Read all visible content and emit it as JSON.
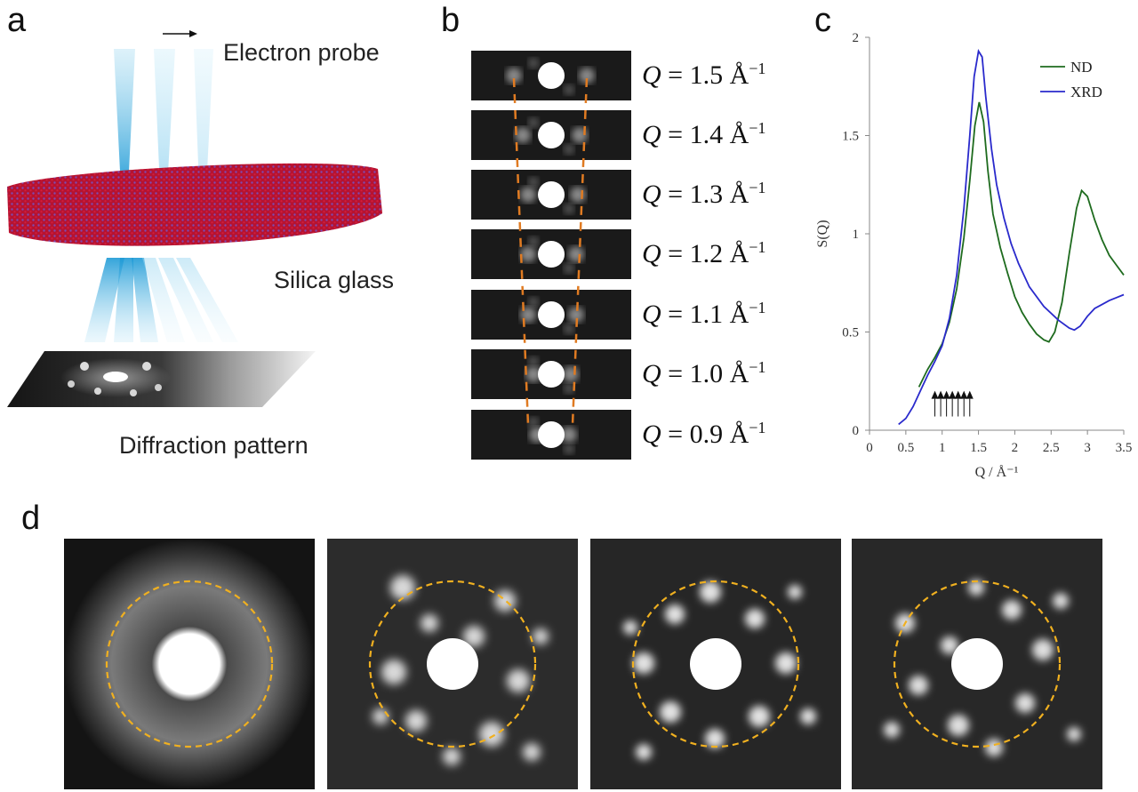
{
  "panels": {
    "a": {
      "letter": "a",
      "electron_probe": "Electron probe",
      "silica_glass": "Silica glass",
      "diffraction_pattern": "Diffraction pattern"
    },
    "b": {
      "letter": "b",
      "rows": [
        {
          "q": "1.5"
        },
        {
          "q": "1.4"
        },
        {
          "q": "1.3"
        },
        {
          "q": "1.2"
        },
        {
          "q": "1.1"
        },
        {
          "q": "1.0"
        },
        {
          "q": "0.9"
        }
      ],
      "q_symbol": "Q",
      "equals": " = ",
      "unit": " Å",
      "unit_exp": "−1"
    },
    "c": {
      "letter": "c"
    },
    "d": {
      "letter": "d",
      "tile_count": 4
    }
  },
  "chart_data": {
    "type": "line",
    "xlabel": "Q / Å⁻¹",
    "ylabel": "S(Q)",
    "xlim": [
      0,
      3.5
    ],
    "ylim": [
      0,
      2
    ],
    "x_ticks": [
      "0",
      "0.5",
      "1",
      "1.5",
      "2",
      "2.5",
      "3",
      "3.5"
    ],
    "y_ticks": [
      "0",
      "0.5",
      "1",
      "1.5",
      "2"
    ],
    "legend_position": "top-right",
    "series": [
      {
        "name": "ND",
        "color": "#1e6b1e",
        "points": [
          [
            0.68,
            0.22
          ],
          [
            0.8,
            0.31
          ],
          [
            0.9,
            0.37
          ],
          [
            1.0,
            0.44
          ],
          [
            1.1,
            0.55
          ],
          [
            1.2,
            0.72
          ],
          [
            1.3,
            0.98
          ],
          [
            1.38,
            1.27
          ],
          [
            1.45,
            1.55
          ],
          [
            1.51,
            1.67
          ],
          [
            1.57,
            1.57
          ],
          [
            1.63,
            1.32
          ],
          [
            1.7,
            1.1
          ],
          [
            1.8,
            0.93
          ],
          [
            1.9,
            0.8
          ],
          [
            2.0,
            0.68
          ],
          [
            2.1,
            0.6
          ],
          [
            2.2,
            0.54
          ],
          [
            2.3,
            0.49
          ],
          [
            2.4,
            0.46
          ],
          [
            2.47,
            0.45
          ],
          [
            2.55,
            0.5
          ],
          [
            2.65,
            0.65
          ],
          [
            2.75,
            0.9
          ],
          [
            2.85,
            1.13
          ],
          [
            2.92,
            1.22
          ],
          [
            3.0,
            1.19
          ],
          [
            3.1,
            1.07
          ],
          [
            3.2,
            0.97
          ],
          [
            3.3,
            0.89
          ],
          [
            3.4,
            0.84
          ],
          [
            3.5,
            0.79
          ]
        ]
      },
      {
        "name": "XRD",
        "color": "#2a2acc",
        "points": [
          [
            0.4,
            0.03
          ],
          [
            0.5,
            0.06
          ],
          [
            0.6,
            0.12
          ],
          [
            0.7,
            0.2
          ],
          [
            0.8,
            0.28
          ],
          [
            0.9,
            0.35
          ],
          [
            1.0,
            0.43
          ],
          [
            1.1,
            0.57
          ],
          [
            1.2,
            0.79
          ],
          [
            1.3,
            1.13
          ],
          [
            1.38,
            1.5
          ],
          [
            1.44,
            1.8
          ],
          [
            1.5,
            1.93
          ],
          [
            1.55,
            1.9
          ],
          [
            1.6,
            1.7
          ],
          [
            1.68,
            1.43
          ],
          [
            1.75,
            1.25
          ],
          [
            1.85,
            1.08
          ],
          [
            1.95,
            0.95
          ],
          [
            2.05,
            0.85
          ],
          [
            2.2,
            0.73
          ],
          [
            2.4,
            0.63
          ],
          [
            2.6,
            0.56
          ],
          [
            2.75,
            0.52
          ],
          [
            2.82,
            0.51
          ],
          [
            2.9,
            0.53
          ],
          [
            3.0,
            0.58
          ],
          [
            3.1,
            0.62
          ],
          [
            3.2,
            0.64
          ],
          [
            3.3,
            0.66
          ],
          [
            3.4,
            0.675
          ],
          [
            3.5,
            0.69
          ]
        ]
      }
    ],
    "arrow_positions": [
      0.9,
      0.98,
      1.06,
      1.14,
      1.22,
      1.3,
      1.38
    ]
  }
}
